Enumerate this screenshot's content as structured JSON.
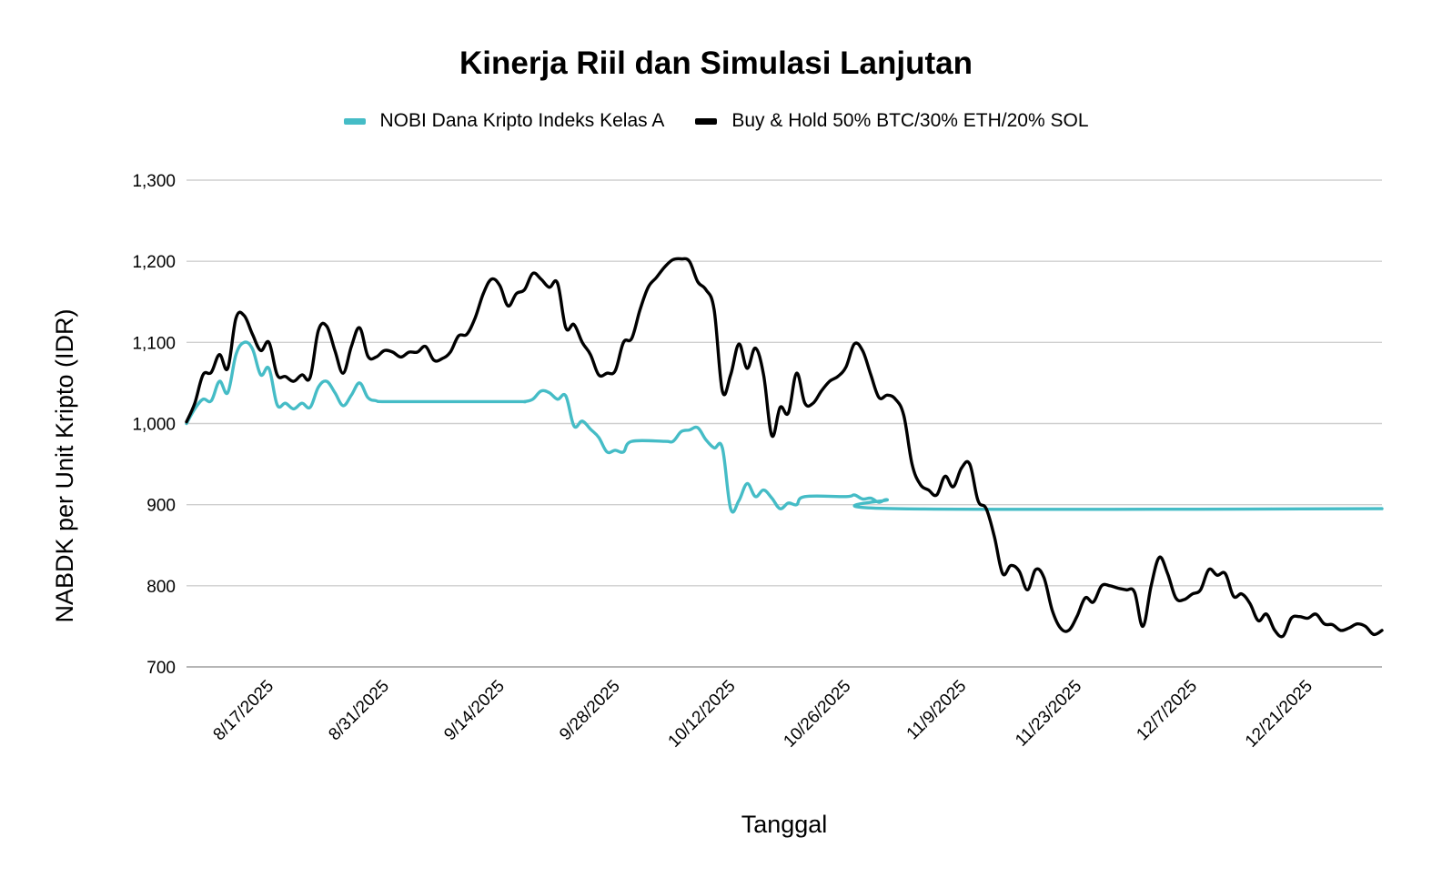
{
  "chart_data": {
    "type": "line",
    "title": "Kinerja Riil dan Simulasi Lanjutan",
    "xlabel": "Tanggal",
    "ylabel": "NABDK per Unit Kripto (IDR)",
    "ylim": [
      700,
      1300
    ],
    "yticks": [
      700,
      800,
      900,
      1000,
      1100,
      1200,
      1300
    ],
    "ytick_labels": [
      "700",
      "800",
      "900",
      "1,000",
      "1,100",
      "1,200",
      "1,300"
    ],
    "x_range_days": [
      0,
      145
    ],
    "xtick_days": [
      10,
      24,
      38,
      52,
      66,
      80,
      94,
      108,
      122,
      136
    ],
    "xtick_labels": [
      "8/17/2025",
      "8/31/2025",
      "9/14/2025",
      "9/28/2025",
      "10/12/2025",
      "10/26/2025",
      "11/9/2025",
      "11/23/2025",
      "12/7/2025",
      "12/21/2025"
    ],
    "grid": true,
    "legend_position": "top",
    "series": [
      {
        "name": "NOBI Dana Kripto Indeks Kelas A",
        "color": "#45bcc6",
        "points": [
          [
            0,
            1000
          ],
          [
            1,
            1018
          ],
          [
            2,
            1030
          ],
          [
            3,
            1028
          ],
          [
            4,
            1052
          ],
          [
            5,
            1038
          ],
          [
            6,
            1085
          ],
          [
            7,
            1100
          ],
          [
            8,
            1092
          ],
          [
            9,
            1060
          ],
          [
            10,
            1068
          ],
          [
            11,
            1023
          ],
          [
            12,
            1025
          ],
          [
            13,
            1018
          ],
          [
            14,
            1025
          ],
          [
            15,
            1020
          ],
          [
            16,
            1045
          ],
          [
            17,
            1052
          ],
          [
            18,
            1038
          ],
          [
            19,
            1022
          ],
          [
            20,
            1035
          ],
          [
            21,
            1050
          ],
          [
            22,
            1032
          ],
          [
            23,
            1028
          ],
          [
            24,
            1027
          ],
          [
            30,
            1027
          ],
          [
            40,
            1027
          ],
          [
            41,
            1027
          ],
          [
            42,
            1030
          ],
          [
            43,
            1040
          ],
          [
            44,
            1038
          ],
          [
            45,
            1030
          ],
          [
            46,
            1034
          ],
          [
            47,
            997
          ],
          [
            48,
            1003
          ],
          [
            49,
            993
          ],
          [
            50,
            983
          ],
          [
            51,
            965
          ],
          [
            52,
            967
          ],
          [
            53,
            965
          ],
          [
            54,
            978
          ],
          [
            58,
            978
          ],
          [
            59,
            978
          ],
          [
            60,
            990
          ],
          [
            61,
            992
          ],
          [
            62,
            995
          ],
          [
            63,
            980
          ],
          [
            64,
            970
          ],
          [
            65,
            970
          ],
          [
            66,
            895
          ],
          [
            67,
            905
          ],
          [
            68,
            926
          ],
          [
            69,
            910
          ],
          [
            70,
            918
          ],
          [
            71,
            908
          ],
          [
            72,
            895
          ],
          [
            73,
            902
          ],
          [
            74,
            900
          ],
          [
            75,
            910
          ],
          [
            80,
            910
          ],
          [
            81,
            912
          ],
          [
            82,
            907
          ],
          [
            83,
            908
          ],
          [
            84,
            903
          ],
          [
            85,
            906
          ],
          [
            86,
            895
          ],
          [
            145,
            895
          ]
        ]
      },
      {
        "name": "Buy & Hold 50% BTC/30% ETH/20% SOL",
        "color": "#000000",
        "points": [
          [
            0,
            1002
          ],
          [
            1,
            1025
          ],
          [
            2,
            1060
          ],
          [
            3,
            1063
          ],
          [
            4,
            1085
          ],
          [
            5,
            1068
          ],
          [
            6,
            1130
          ],
          [
            7,
            1133
          ],
          [
            8,
            1110
          ],
          [
            9,
            1090
          ],
          [
            10,
            1100
          ],
          [
            11,
            1060
          ],
          [
            12,
            1058
          ],
          [
            13,
            1052
          ],
          [
            14,
            1060
          ],
          [
            15,
            1057
          ],
          [
            16,
            1115
          ],
          [
            17,
            1120
          ],
          [
            18,
            1090
          ],
          [
            19,
            1062
          ],
          [
            20,
            1095
          ],
          [
            21,
            1118
          ],
          [
            22,
            1083
          ],
          [
            23,
            1082
          ],
          [
            24,
            1090
          ],
          [
            25,
            1088
          ],
          [
            26,
            1082
          ],
          [
            27,
            1088
          ],
          [
            28,
            1088
          ],
          [
            29,
            1095
          ],
          [
            30,
            1078
          ],
          [
            31,
            1080
          ],
          [
            32,
            1088
          ],
          [
            33,
            1108
          ],
          [
            34,
            1110
          ],
          [
            35,
            1130
          ],
          [
            36,
            1160
          ],
          [
            37,
            1178
          ],
          [
            38,
            1170
          ],
          [
            39,
            1145
          ],
          [
            40,
            1160
          ],
          [
            41,
            1165
          ],
          [
            42,
            1185
          ],
          [
            43,
            1178
          ],
          [
            44,
            1168
          ],
          [
            45,
            1173
          ],
          [
            46,
            1118
          ],
          [
            47,
            1122
          ],
          [
            48,
            1100
          ],
          [
            49,
            1085
          ],
          [
            50,
            1060
          ],
          [
            51,
            1062
          ],
          [
            52,
            1065
          ],
          [
            53,
            1100
          ],
          [
            54,
            1105
          ],
          [
            55,
            1140
          ],
          [
            56,
            1168
          ],
          [
            57,
            1180
          ],
          [
            58,
            1193
          ],
          [
            59,
            1202
          ],
          [
            60,
            1203
          ],
          [
            61,
            1200
          ],
          [
            62,
            1175
          ],
          [
            63,
            1165
          ],
          [
            64,
            1140
          ],
          [
            65,
            1040
          ],
          [
            66,
            1060
          ],
          [
            67,
            1098
          ],
          [
            68,
            1068
          ],
          [
            69,
            1093
          ],
          [
            70,
            1060
          ],
          [
            71,
            985
          ],
          [
            72,
            1020
          ],
          [
            73,
            1013
          ],
          [
            74,
            1062
          ],
          [
            75,
            1025
          ],
          [
            76,
            1025
          ],
          [
            77,
            1040
          ],
          [
            78,
            1052
          ],
          [
            79,
            1058
          ],
          [
            80,
            1070
          ],
          [
            81,
            1098
          ],
          [
            82,
            1090
          ],
          [
            83,
            1060
          ],
          [
            84,
            1032
          ],
          [
            85,
            1035
          ],
          [
            86,
            1030
          ],
          [
            87,
            1010
          ],
          [
            88,
            950
          ],
          [
            89,
            925
          ],
          [
            90,
            918
          ],
          [
            91,
            912
          ],
          [
            92,
            935
          ],
          [
            93,
            922
          ],
          [
            94,
            945
          ],
          [
            95,
            950
          ],
          [
            96,
            905
          ],
          [
            97,
            895
          ],
          [
            98,
            860
          ],
          [
            99,
            815
          ],
          [
            100,
            825
          ],
          [
            101,
            818
          ],
          [
            102,
            795
          ],
          [
            103,
            820
          ],
          [
            104,
            810
          ],
          [
            105,
            770
          ],
          [
            106,
            748
          ],
          [
            107,
            745
          ],
          [
            108,
            762
          ],
          [
            109,
            785
          ],
          [
            110,
            780
          ],
          [
            111,
            800
          ],
          [
            112,
            800
          ],
          [
            113,
            797
          ],
          [
            114,
            795
          ],
          [
            115,
            792
          ],
          [
            116,
            750
          ],
          [
            117,
            800
          ],
          [
            118,
            835
          ],
          [
            119,
            815
          ],
          [
            120,
            785
          ],
          [
            121,
            783
          ],
          [
            122,
            790
          ],
          [
            123,
            795
          ],
          [
            124,
            820
          ],
          [
            125,
            813
          ],
          [
            126,
            815
          ],
          [
            127,
            787
          ],
          [
            128,
            790
          ],
          [
            129,
            778
          ],
          [
            130,
            757
          ],
          [
            131,
            765
          ],
          [
            132,
            745
          ],
          [
            133,
            738
          ],
          [
            134,
            760
          ],
          [
            135,
            762
          ],
          [
            136,
            760
          ],
          [
            137,
            765
          ],
          [
            138,
            753
          ],
          [
            139,
            752
          ],
          [
            140,
            745
          ],
          [
            141,
            748
          ],
          [
            142,
            753
          ],
          [
            143,
            750
          ],
          [
            144,
            740
          ],
          [
            145,
            745
          ]
        ]
      }
    ]
  }
}
